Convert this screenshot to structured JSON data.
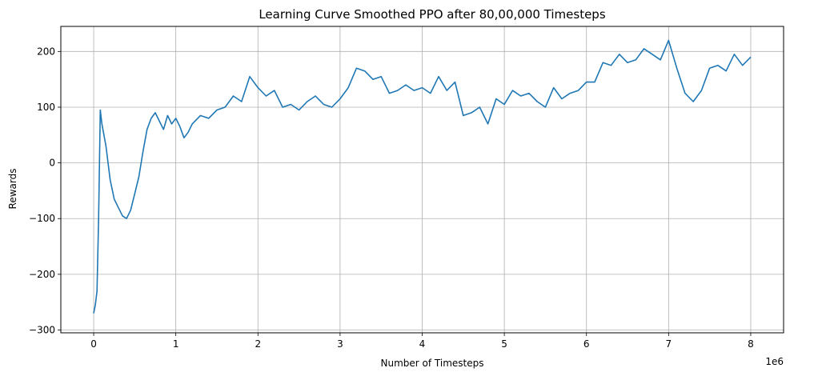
{
  "chart_data": {
    "type": "line",
    "title": "Learning Curve Smoothed PPO after 80,00,000 Timesteps",
    "xlabel": "Number of Timesteps",
    "ylabel": "Rewards",
    "x_offset_text": "1e6",
    "xlim": [
      -0.4,
      8.4
    ],
    "ylim": [
      -305,
      245
    ],
    "x_scale": 1000000,
    "grid": true,
    "x_ticks": [
      0,
      1,
      2,
      3,
      4,
      5,
      6,
      7,
      8
    ],
    "x_tick_labels": [
      "0",
      "1",
      "2",
      "3",
      "4",
      "5",
      "6",
      "7",
      "8"
    ],
    "y_ticks": [
      -300,
      -200,
      -100,
      0,
      100,
      200
    ],
    "y_tick_labels": [
      "−300",
      "−200",
      "−100",
      "0",
      "100",
      "200"
    ],
    "series": [
      {
        "color": "#1f77b4",
        "x": [
          0.0,
          0.02,
          0.04,
          0.06,
          0.08,
          0.1,
          0.15,
          0.2,
          0.25,
          0.3,
          0.35,
          0.4,
          0.45,
          0.5,
          0.55,
          0.6,
          0.65,
          0.7,
          0.75,
          0.8,
          0.85,
          0.9,
          0.95,
          1.0,
          1.05,
          1.1,
          1.15,
          1.2,
          1.3,
          1.4,
          1.5,
          1.6,
          1.7,
          1.8,
          1.9,
          2.0,
          2.1,
          2.2,
          2.3,
          2.4,
          2.5,
          2.6,
          2.7,
          2.8,
          2.9,
          3.0,
          3.1,
          3.2,
          3.3,
          3.4,
          3.5,
          3.6,
          3.7,
          3.8,
          3.9,
          4.0,
          4.1,
          4.2,
          4.3,
          4.4,
          4.5,
          4.6,
          4.7,
          4.8,
          4.9,
          5.0,
          5.1,
          5.2,
          5.3,
          5.4,
          5.5,
          5.6,
          5.7,
          5.8,
          5.9,
          6.0,
          6.1,
          6.2,
          6.3,
          6.4,
          6.5,
          6.6,
          6.7,
          6.8,
          6.9,
          7.0,
          7.1,
          7.2,
          7.3,
          7.4,
          7.5,
          7.6,
          7.7,
          7.8,
          7.9,
          8.0
        ],
        "y": [
          -270,
          -255,
          -230,
          -100,
          95,
          70,
          30,
          -30,
          -65,
          -80,
          -95,
          -100,
          -85,
          -55,
          -25,
          20,
          60,
          80,
          90,
          75,
          60,
          85,
          70,
          80,
          65,
          45,
          55,
          70,
          85,
          80,
          95,
          100,
          120,
          110,
          155,
          135,
          120,
          130,
          100,
          105,
          95,
          110,
          120,
          105,
          100,
          115,
          135,
          170,
          165,
          150,
          155,
          125,
          130,
          140,
          130,
          135,
          125,
          155,
          130,
          145,
          85,
          90,
          100,
          70,
          115,
          105,
          130,
          120,
          125,
          110,
          100,
          135,
          115,
          125,
          130,
          145,
          145,
          180,
          175,
          195,
          180,
          185,
          205,
          195,
          185,
          220,
          170,
          125,
          110,
          130,
          170,
          175,
          165,
          195,
          175,
          190
        ]
      }
    ]
  }
}
